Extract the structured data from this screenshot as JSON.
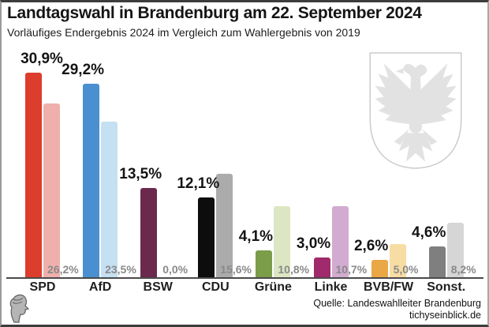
{
  "header": {
    "title": "Landtagswahl in Brandenburg am 22. September 2024",
    "subtitle": "Vorläufiges Endergebnis 2024 im Vergleich zum Wahlergebnis von 2019"
  },
  "chart_data": {
    "type": "bar",
    "title": "Landtagswahl in Brandenburg am 22. September 2024",
    "subtitle": "Vorläufiges Endergebnis 2024 im Vergleich zum Wahlergebnis von 2019",
    "categories": [
      "SPD",
      "AfD",
      "BSW",
      "CDU",
      "Grüne",
      "Linke",
      "BVB/FW",
      "Sonst."
    ],
    "series": [
      {
        "name": "2024",
        "values": [
          30.9,
          29.2,
          13.5,
          12.1,
          4.1,
          3.0,
          2.6,
          4.6
        ],
        "labels": [
          "30,9%",
          "29,2%",
          "13,5%",
          "12,1%",
          "4,1%",
          "3,0%",
          "2,6%",
          "4,6%"
        ]
      },
      {
        "name": "2019",
        "values": [
          26.2,
          23.5,
          0.0,
          15.6,
          10.8,
          10.7,
          5.0,
          8.2
        ],
        "labels": [
          "26,2%",
          "23,5%",
          "0,0%",
          "15,6%",
          "10,8%",
          "10,7%",
          "5,0%",
          "8,2%"
        ]
      }
    ],
    "colors_2024": [
      "#dd3d2c",
      "#4a8fd0",
      "#6b2a4d",
      "#0d0d0d",
      "#7b9c49",
      "#a02a6b",
      "#eaa746",
      "#7f7f7f"
    ],
    "colors_2019": [
      "#efb0ac",
      "#c5e0f2",
      "#c9c9c9",
      "#ababab",
      "#dde6c2",
      "#d2abd0",
      "#f7dca4",
      "#d6d6d6"
    ],
    "xlabel": "",
    "ylabel": "",
    "ylim": [
      0,
      33
    ],
    "unit": "%",
    "grid": false,
    "legend": "none"
  },
  "footer": {
    "source_line1": "Quelle: Landeswahlleiter Brandenburg",
    "source_line2": "tichyseinblick.de"
  },
  "decor": {
    "crest_name": "brandenburg-eagle-crest",
    "logo_name": "tichys-einblick-head-logo",
    "crest_color": "#e2e2e2",
    "axis_color": "#4a4a4a",
    "label_2019_color": "#8a8a8a"
  }
}
